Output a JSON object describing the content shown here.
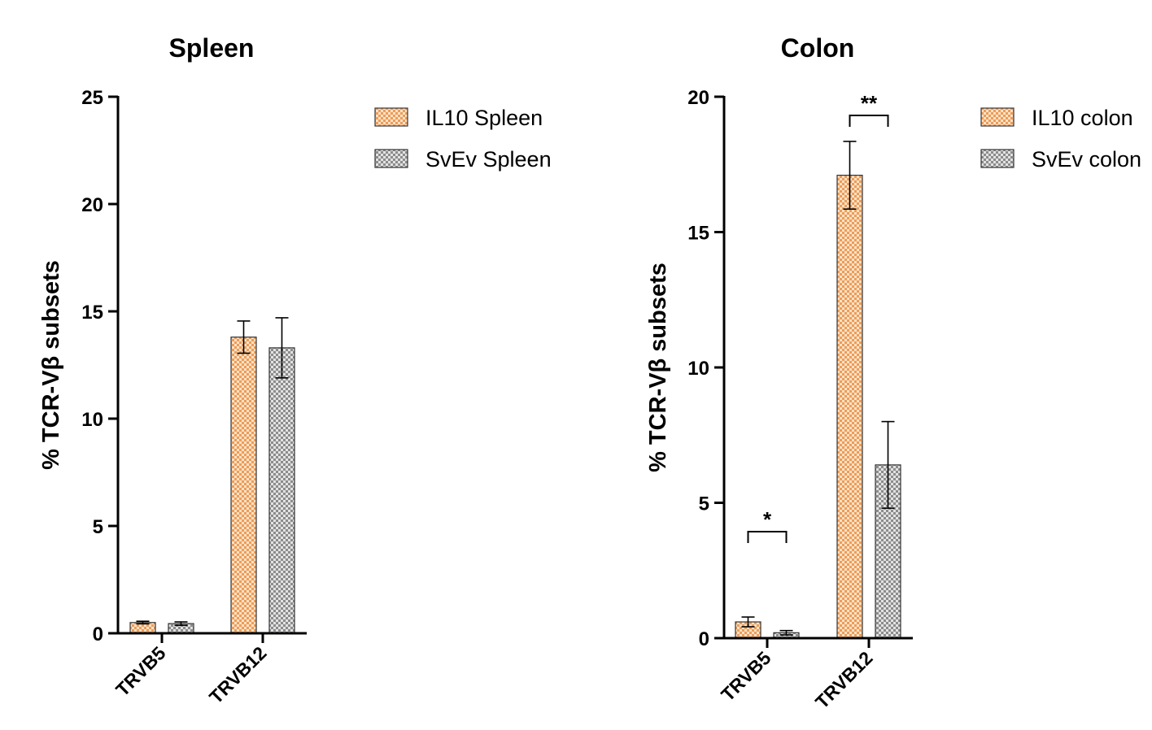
{
  "chart_data": [
    {
      "type": "bar",
      "title": "Spleen",
      "ylabel": "% TCR-Vβ subsets",
      "xlabel": "",
      "categories": [
        "TRVB5",
        "TRVB12"
      ],
      "ylim": [
        0,
        25
      ],
      "yticks": [
        0,
        5,
        10,
        15,
        20,
        25
      ],
      "series": [
        {
          "name": "IL10 Spleen",
          "values": [
            0.5,
            13.8
          ],
          "errors": [
            0.06,
            0.75
          ],
          "color": "#f0a868",
          "pattern": "orange-check"
        },
        {
          "name": "SvEv Spleen",
          "values": [
            0.45,
            13.3
          ],
          "errors": [
            0.08,
            1.4
          ],
          "color": "#9a9a9a",
          "pattern": "gray-check"
        }
      ],
      "significance": [],
      "legend": "top-right",
      "grid": false
    },
    {
      "type": "bar",
      "title": "Colon",
      "ylabel": "% TCR-Vβ subsets",
      "xlabel": "",
      "categories": [
        "TRVB5",
        "TRVB12"
      ],
      "ylim": [
        0,
        20
      ],
      "yticks": [
        0,
        5,
        10,
        15,
        20
      ],
      "series": [
        {
          "name": "IL10 colon",
          "values": [
            0.6,
            17.1
          ],
          "errors": [
            0.18,
            1.25
          ],
          "color": "#f0a868",
          "pattern": "orange-check"
        },
        {
          "name": "SvEv colon",
          "values": [
            0.2,
            6.4
          ],
          "errors": [
            0.08,
            1.6
          ],
          "color": "#9a9a9a",
          "pattern": "gray-check"
        }
      ],
      "significance": [
        {
          "category": "TRVB5",
          "label": "*"
        },
        {
          "category": "TRVB12",
          "label": "**"
        }
      ],
      "legend": "top-right",
      "grid": false
    }
  ]
}
